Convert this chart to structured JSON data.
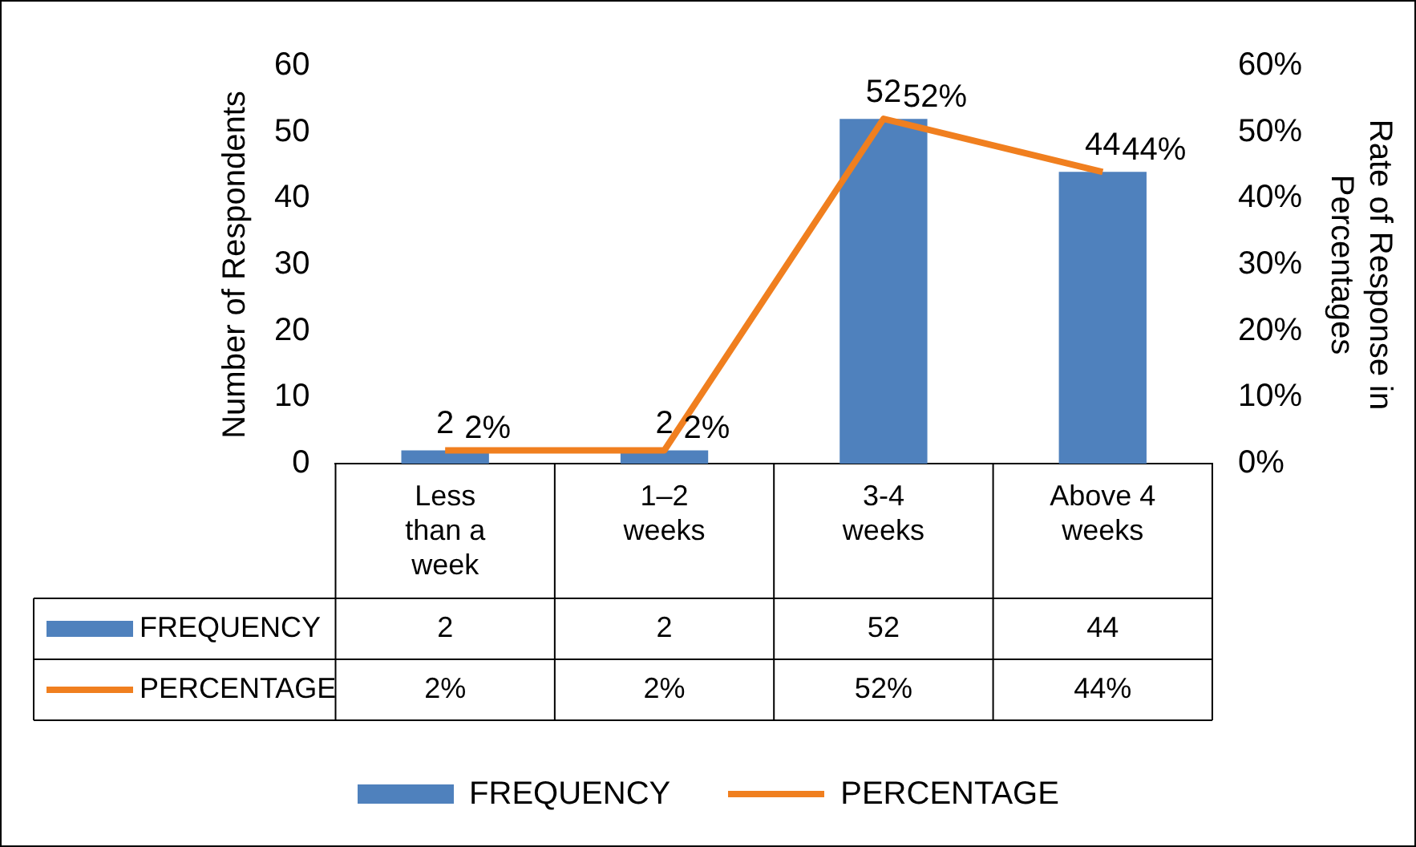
{
  "chart_data": {
    "type": "bar",
    "ylabel": "Number of Respondents",
    "y2label": "Rate of Response in Percentages",
    "categories": [
      "Less than a week",
      "1–2 weeks",
      "3-4 weeks",
      "Above 4 weeks"
    ],
    "series": [
      {
        "name": "FREQUENCY",
        "color": "#4f81bd",
        "values": [
          2,
          2,
          52,
          44
        ],
        "value_labels": [
          "2",
          "2",
          "52",
          "44"
        ]
      },
      {
        "name": "PERCENTAGE",
        "type": "line",
        "axis": "y2",
        "color": "#f07f1f",
        "values": [
          2,
          2,
          52,
          44
        ],
        "value_labels": [
          "2%",
          "2%",
          "52%",
          "44%"
        ]
      }
    ],
    "ylim": [
      0,
      60
    ],
    "yticks": [
      0,
      10,
      20,
      30,
      40,
      50,
      60
    ],
    "y2lim": [
      0,
      60
    ],
    "y2ticks": [
      {
        "value": 0,
        "label": "0%"
      },
      {
        "value": 10,
        "label": "10%"
      },
      {
        "value": 20,
        "label": "20%"
      },
      {
        "value": 30,
        "label": "30%"
      },
      {
        "value": 40,
        "label": "40%"
      },
      {
        "value": 50,
        "label": "50%"
      },
      {
        "value": 60,
        "label": "60%"
      }
    ],
    "grid": false,
    "legend": "bottom",
    "marker": "none",
    "line_style": "solid"
  }
}
